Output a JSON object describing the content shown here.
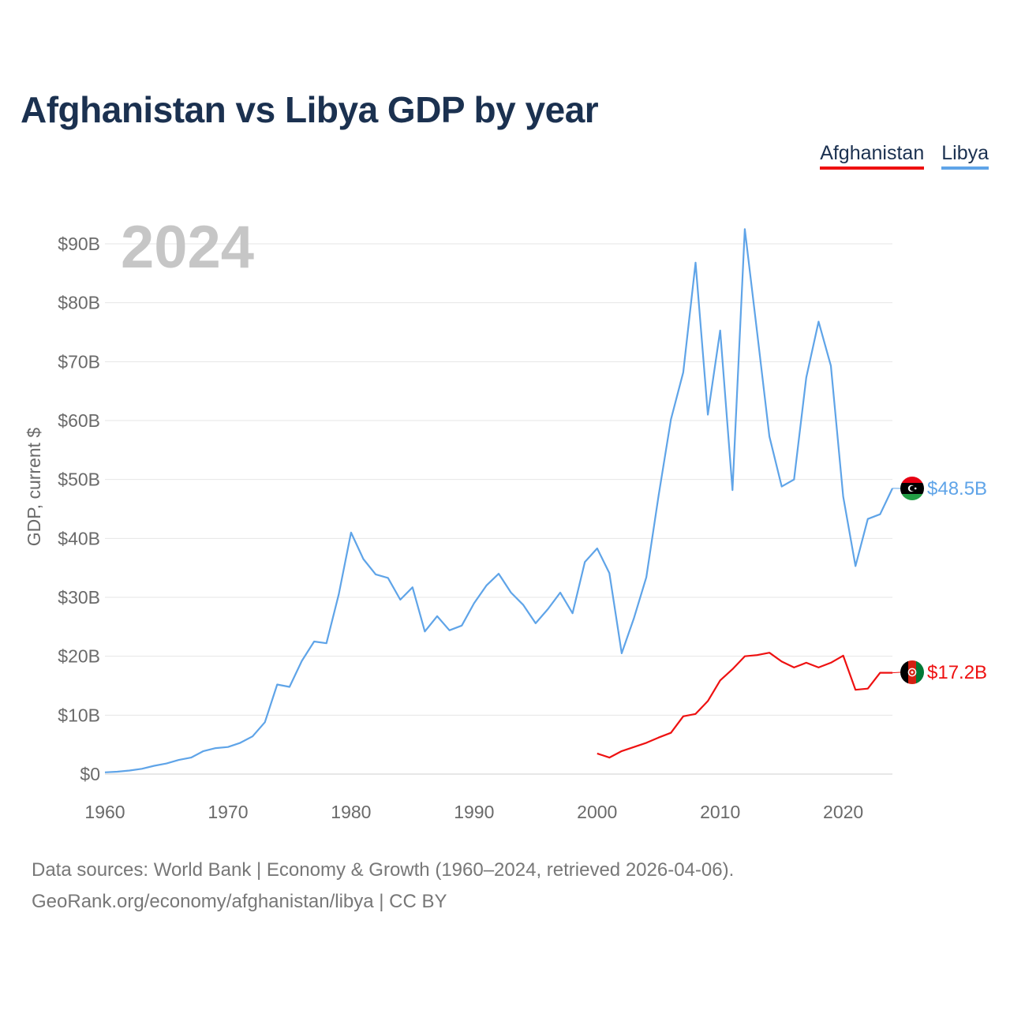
{
  "title": "Afghanistan vs Libya GDP by year",
  "legend": [
    {
      "label": "Afghanistan",
      "color": "#ee1111"
    },
    {
      "label": "Libya",
      "color": "#5fa4e8"
    }
  ],
  "year_display": "2024",
  "source": {
    "line1": "Data sources: World Bank | Economy & Growth (1960–2024, retrieved 2026-04-06).",
    "line2": "GeoRank.org/economy/afghanistan/libya | CC BY"
  },
  "chart_data": {
    "type": "line",
    "title": "Afghanistan vs Libya GDP by year",
    "xlabel": "",
    "ylabel": "GDP, current $",
    "xlim": [
      1960,
      2024
    ],
    "ylim": [
      0,
      90
    ],
    "y_unit": "billion USD",
    "x_ticks": [
      1960,
      1970,
      1980,
      1990,
      2000,
      2010,
      2020
    ],
    "x_tick_labels": [
      "1960",
      "1970",
      "1980",
      "1990",
      "2000",
      "2010",
      "2020"
    ],
    "y_ticks": [
      0,
      10,
      20,
      30,
      40,
      50,
      60,
      70,
      80,
      90
    ],
    "y_tick_labels": [
      "$0",
      "$10B",
      "$20B",
      "$30B",
      "$40B",
      "$50B",
      "$60B",
      "$70B",
      "$80B",
      "$90B"
    ],
    "grid": true,
    "legend_position": "top-right",
    "series": [
      {
        "name": "Libya",
        "color": "#5fa4e8",
        "end_label": "$48.5B",
        "x": [
          1960,
          1961,
          1962,
          1963,
          1964,
          1965,
          1966,
          1967,
          1968,
          1969,
          1970,
          1971,
          1972,
          1973,
          1974,
          1975,
          1976,
          1977,
          1978,
          1979,
          1980,
          1981,
          1982,
          1983,
          1984,
          1985,
          1986,
          1987,
          1988,
          1989,
          1990,
          1991,
          1992,
          1993,
          1994,
          1995,
          1996,
          1997,
          1998,
          1999,
          2000,
          2001,
          2002,
          2003,
          2004,
          2005,
          2006,
          2007,
          2008,
          2009,
          2010,
          2011,
          2012,
          2013,
          2014,
          2015,
          2016,
          2017,
          2018,
          2019,
          2020,
          2021,
          2022,
          2023,
          2024
        ],
        "values": [
          0.3,
          0.4,
          0.6,
          0.9,
          1.4,
          1.8,
          2.4,
          2.8,
          3.9,
          4.4,
          4.6,
          5.3,
          6.4,
          8.8,
          15.2,
          14.8,
          19.2,
          22.5,
          22.2,
          30.5,
          41.0,
          36.5,
          33.9,
          33.3,
          29.6,
          31.7,
          24.2,
          26.8,
          24.4,
          25.2,
          29.0,
          32.0,
          34.0,
          30.8,
          28.7,
          25.6,
          28.0,
          30.8,
          27.3,
          36.0,
          38.3,
          34.1,
          20.5,
          26.5,
          33.4,
          47.3,
          60.2,
          68.2,
          86.8,
          61.0,
          75.3,
          48.2,
          92.5,
          75.0,
          57.3,
          48.8,
          50.0,
          67.3,
          76.8,
          69.3,
          47.1,
          35.3,
          43.3,
          44.1,
          48.5
        ]
      },
      {
        "name": "Afghanistan",
        "color": "#ee1111",
        "end_label": "$17.2B",
        "x": [
          2000,
          2001,
          2002,
          2003,
          2004,
          2005,
          2006,
          2007,
          2008,
          2009,
          2010,
          2011,
          2012,
          2013,
          2014,
          2015,
          2016,
          2017,
          2018,
          2019,
          2020,
          2021,
          2022,
          2023,
          2024
        ],
        "values": [
          3.5,
          2.8,
          3.9,
          4.6,
          5.3,
          6.2,
          7.0,
          9.8,
          10.2,
          12.4,
          15.9,
          17.8,
          20.0,
          20.2,
          20.6,
          19.1,
          18.1,
          18.9,
          18.1,
          18.9,
          20.1,
          14.3,
          14.5,
          17.2,
          17.2
        ]
      }
    ]
  }
}
